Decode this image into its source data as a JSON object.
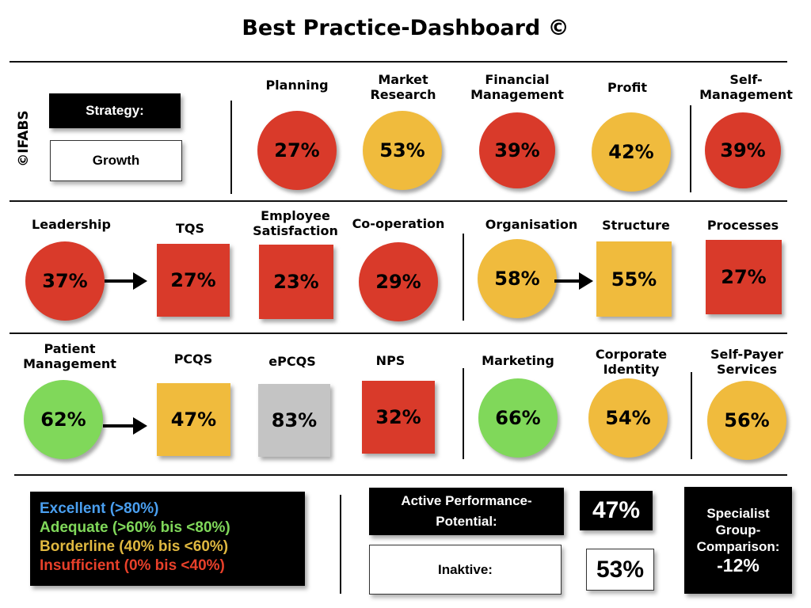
{
  "title": "Best Practice-Dashboard ©",
  "copyright": "©IFABS",
  "strategy": {
    "label": "Strategy:",
    "value": "Growth"
  },
  "colors": {
    "insufficient": "#d93a2a",
    "borderline": "#f0bb3d",
    "adequate": "#80d85a",
    "excellent": "#4a9ff0",
    "neutral": "#c4c4c4"
  },
  "row1": [
    {
      "label": "Planning",
      "value": "27%",
      "shape": "circle",
      "status": "insufficient"
    },
    {
      "label": "Market Research",
      "value": "53%",
      "shape": "circle",
      "status": "borderline"
    },
    {
      "label": "Financial Management",
      "value": "39%",
      "shape": "circle",
      "status": "insufficient"
    },
    {
      "label": "Profit",
      "value": "42%",
      "shape": "circle",
      "status": "borderline"
    },
    {
      "label": "Self-Management",
      "value": "39%",
      "shape": "circle",
      "status": "insufficient"
    }
  ],
  "row2": [
    {
      "label": "Leadership",
      "value": "37%",
      "shape": "circle",
      "status": "insufficient"
    },
    {
      "label": "TQS",
      "value": "27%",
      "shape": "square",
      "status": "insufficient"
    },
    {
      "label": "Employee Satisfaction",
      "value": "23%",
      "shape": "square",
      "status": "insufficient"
    },
    {
      "label": "Co-operation",
      "value": "29%",
      "shape": "circle",
      "status": "insufficient"
    },
    {
      "label": "Organisation",
      "value": "58%",
      "shape": "circle",
      "status": "borderline"
    },
    {
      "label": "Structure",
      "value": "55%",
      "shape": "square",
      "status": "borderline"
    },
    {
      "label": "Processes",
      "value": "27%",
      "shape": "square",
      "status": "insufficient"
    }
  ],
  "row3": [
    {
      "label": "Patient Management",
      "value": "62%",
      "shape": "circle",
      "status": "adequate"
    },
    {
      "label": "PCQS",
      "value": "47%",
      "shape": "square",
      "status": "borderline"
    },
    {
      "label": "ePCQS",
      "value": "83%",
      "shape": "square",
      "status": "neutral"
    },
    {
      "label": "NPS",
      "value": "32%",
      "shape": "square",
      "status": "insufficient"
    },
    {
      "label": "Marketing",
      "value": "66%",
      "shape": "circle",
      "status": "adequate"
    },
    {
      "label": "Corporate Identity",
      "value": "54%",
      "shape": "circle",
      "status": "borderline"
    },
    {
      "label": "Self-Payer Services",
      "value": "56%",
      "shape": "circle",
      "status": "borderline"
    }
  ],
  "legend": [
    {
      "text": "Excellent (>80%)",
      "color": "#4a9ff0"
    },
    {
      "text": "Adequate (>60% bis <80%)",
      "color": "#80d85a"
    },
    {
      "text": "Borderline (40% bis <60%)",
      "color": "#e0b840"
    },
    {
      "text": "Insufficient (0% bis <40%)",
      "color": "#e8402a"
    }
  ],
  "active": {
    "label": "Active Performance-Potential:",
    "value": "47%"
  },
  "inactive": {
    "label": "Inaktive:",
    "value": "53%"
  },
  "comparison": {
    "label": "Specialist Group-Comparison:",
    "value": "-12%"
  }
}
